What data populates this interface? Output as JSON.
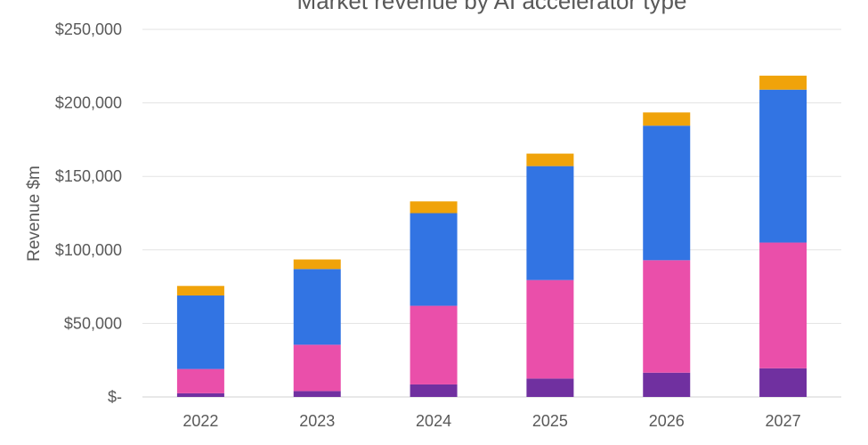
{
  "chart_data": {
    "type": "bar",
    "stacked": true,
    "title": "Market revenue by AI accelerator type",
    "xlabel": "",
    "ylabel": "Revenue $m",
    "categories": [
      "2022",
      "2023",
      "2024",
      "2025",
      "2026",
      "2027"
    ],
    "ylim": [
      0,
      250000
    ],
    "yticks": [
      0,
      50000,
      100000,
      150000,
      200000,
      250000
    ],
    "ytick_labels": [
      "$-",
      "$50,000",
      "$100,000",
      "$150,000",
      "$200,000",
      "$250,000"
    ],
    "grid": true,
    "legend": "none",
    "series": [
      {
        "color": "#7030A0",
        "values": [
          2500,
          4000,
          8500,
          12500,
          16500,
          19500
        ]
      },
      {
        "color": "#EA4FAA",
        "values": [
          16500,
          31500,
          53500,
          67000,
          76500,
          85500
        ]
      },
      {
        "color": "#3274E3",
        "values": [
          50000,
          51500,
          63000,
          77500,
          91500,
          104000
        ]
      },
      {
        "color": "#F0A30A",
        "values": [
          6500,
          6500,
          8000,
          8500,
          9000,
          9500
        ]
      }
    ]
  }
}
